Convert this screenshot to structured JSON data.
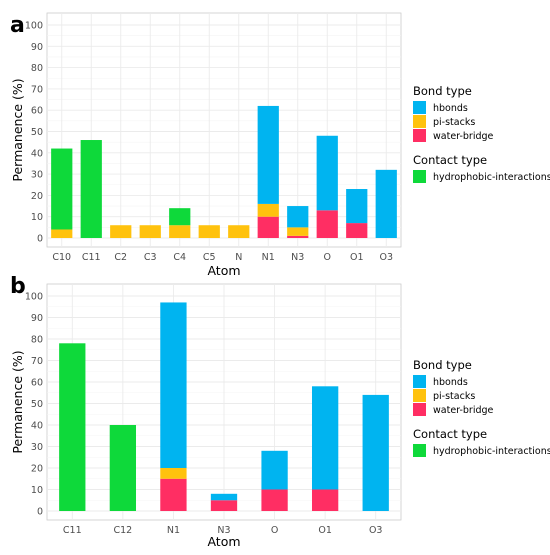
{
  "chart_data": [
    {
      "type": "bar",
      "stacked": true,
      "panel": "a",
      "xlabel": "Atom",
      "ylabel": "Permanence (%)",
      "ylim": [
        0,
        100
      ],
      "yticks": [
        0,
        10,
        20,
        30,
        40,
        50,
        60,
        70,
        80,
        90,
        100
      ],
      "grid": true,
      "categories": [
        "C10",
        "C11",
        "C2",
        "C3",
        "C4",
        "C5",
        "N",
        "N1",
        "N3",
        "O",
        "O1",
        "O3"
      ],
      "series": [
        {
          "name": "water-bridge",
          "color": "#ff2e63",
          "values": [
            0,
            0,
            0,
            0,
            0,
            0,
            0,
            10,
            1,
            13,
            7,
            0
          ]
        },
        {
          "name": "pi-stacks",
          "color": "#ffc20e",
          "values": [
            4,
            0,
            6,
            6,
            6,
            6,
            6,
            6,
            4,
            0,
            0,
            0
          ]
        },
        {
          "name": "hbonds",
          "color": "#00b4f0",
          "values": [
            0,
            0,
            0,
            0,
            0,
            0,
            0,
            46,
            10,
            35,
            16,
            32
          ]
        },
        {
          "name": "hydrophobic-interactions",
          "color": "#0ed93a",
          "values": [
            38,
            46,
            0,
            0,
            8,
            0,
            0,
            0,
            0,
            0,
            0,
            0
          ]
        }
      ],
      "legend": {
        "placement": "right",
        "groups": [
          {
            "title": "Bond type",
            "items": [
              "hbonds",
              "pi-stacks",
              "water-bridge"
            ]
          },
          {
            "title": "Contact type",
            "items": [
              "hydrophobic-interactions"
            ]
          }
        ]
      }
    },
    {
      "type": "bar",
      "stacked": true,
      "panel": "b",
      "xlabel": "Atom",
      "ylabel": "Permanence (%)",
      "ylim": [
        0,
        100
      ],
      "yticks": [
        0,
        10,
        20,
        30,
        40,
        50,
        60,
        70,
        80,
        90,
        100
      ],
      "grid": true,
      "categories": [
        "C11",
        "C12",
        "N1",
        "N3",
        "O",
        "O1",
        "O3"
      ],
      "series": [
        {
          "name": "water-bridge",
          "color": "#ff2e63",
          "values": [
            0,
            0,
            15,
            5,
            10,
            10,
            0
          ]
        },
        {
          "name": "pi-stacks",
          "color": "#ffc20e",
          "values": [
            0,
            0,
            5,
            0,
            0,
            0,
            0
          ]
        },
        {
          "name": "hbonds",
          "color": "#00b4f0",
          "values": [
            0,
            0,
            77,
            3,
            18,
            48,
            54
          ]
        },
        {
          "name": "hydrophobic-interactions",
          "color": "#0ed93a",
          "values": [
            78,
            40,
            0,
            0,
            0,
            0,
            0
          ]
        }
      ],
      "legend": {
        "placement": "right",
        "groups": [
          {
            "title": "Bond type",
            "items": [
              "hbonds",
              "pi-stacks",
              "water-bridge"
            ]
          },
          {
            "title": "Contact type",
            "items": [
              "hydrophobic-interactions"
            ]
          }
        ]
      }
    }
  ]
}
